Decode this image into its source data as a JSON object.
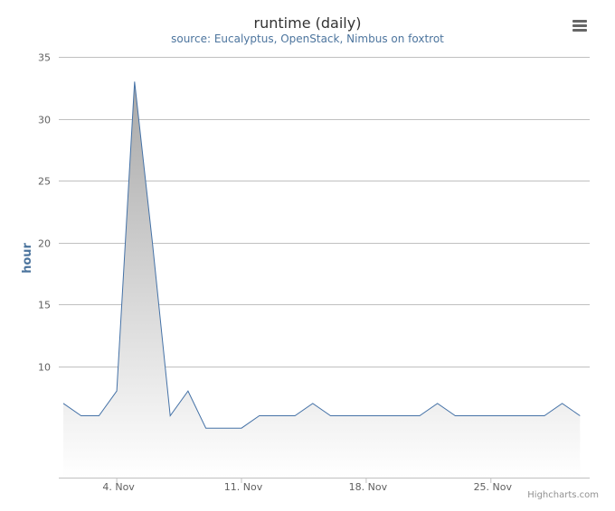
{
  "chart": {
    "title": "runtime (daily)",
    "subtitle": "source: Eucalyptus, OpenStack, Nimbus on foxtrot",
    "menu_icon": "hamburger-menu-icon",
    "credits": "Highcharts.com"
  },
  "colors": {
    "line": "#4572a7",
    "area_top": "#a8a8a8",
    "area_bottom": "#ffffff",
    "grid": "#c0c0c0",
    "axis_title": "#4d759e"
  },
  "chart_data": {
    "type": "area",
    "title": "runtime (daily)",
    "subtitle": "source: Eucalyptus, OpenStack, Nimbus on foxtrot",
    "xlabel": "",
    "ylabel": "hour",
    "y_ticks": [
      10,
      15,
      20,
      25,
      30,
      35
    ],
    "ylim": [
      1,
      35
    ],
    "grid": true,
    "legend": "none",
    "x_ticks": [
      "4. Nov",
      "11. Nov",
      "18. Nov",
      "25. Nov"
    ],
    "x": [
      "1. Nov",
      "2. Nov",
      "3. Nov",
      "4. Nov",
      "5. Nov",
      "6. Nov",
      "7. Nov",
      "8. Nov",
      "9. Nov",
      "10. Nov",
      "11. Nov",
      "12. Nov",
      "13. Nov",
      "14. Nov",
      "15. Nov",
      "16. Nov",
      "17. Nov",
      "18. Nov",
      "19. Nov",
      "20. Nov",
      "21. Nov",
      "22. Nov",
      "23. Nov",
      "24. Nov",
      "25. Nov",
      "26. Nov",
      "27. Nov",
      "28. Nov",
      "29. Nov",
      "30. Nov"
    ],
    "series": [
      {
        "values": [
          7,
          6,
          6,
          8,
          33,
          20,
          6,
          8,
          5,
          5,
          5,
          6,
          6,
          6,
          7,
          6,
          6,
          6,
          6,
          6,
          6,
          7,
          6,
          6,
          6,
          6,
          6,
          6,
          7,
          6
        ]
      }
    ]
  }
}
